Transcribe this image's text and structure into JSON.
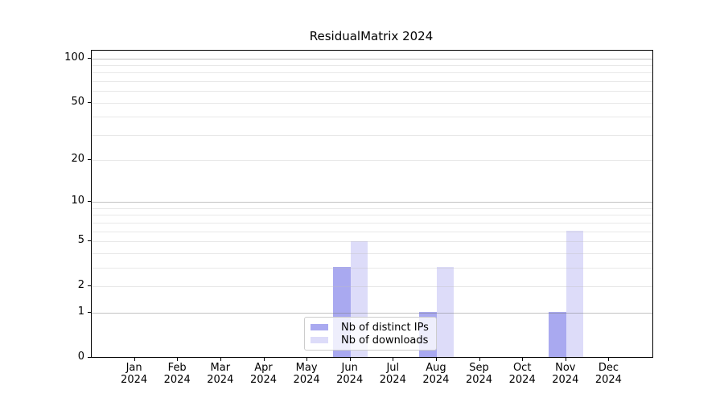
{
  "chart_data": {
    "type": "bar",
    "title": "ResidualMatrix 2024",
    "x_tick_month_labels": [
      "Jan",
      "Feb",
      "Mar",
      "Apr",
      "May",
      "Jun",
      "Jul",
      "Aug",
      "Sep",
      "Oct",
      "Nov",
      "Dec"
    ],
    "x_tick_year_label": "2024",
    "categories": [
      "Jan 2024",
      "Feb 2024",
      "Mar 2024",
      "Apr 2024",
      "May 2024",
      "Jun 2024",
      "Jul 2024",
      "Aug 2024",
      "Sep 2024",
      "Oct 2024",
      "Nov 2024",
      "Dec 2024"
    ],
    "series": [
      {
        "name": "Nb of distinct IPs",
        "color": "#a9a9f0",
        "values": [
          0,
          0,
          0,
          0,
          0,
          3,
          0,
          1,
          0,
          0,
          1,
          0
        ]
      },
      {
        "name": "Nb of downloads",
        "color": "#dddcf9",
        "values": [
          0,
          0,
          0,
          0,
          0,
          5,
          0,
          3,
          0,
          0,
          6,
          0
        ]
      }
    ],
    "xlabel": "",
    "ylabel": "",
    "scale": "log10(1+x)",
    "ylim": [
      0,
      112
    ],
    "y_tick_values": [
      0,
      1,
      2,
      5,
      10,
      20,
      50,
      100
    ],
    "y_major_gridlines": [
      1,
      10,
      100
    ],
    "y_minor_gridlines": [
      2,
      3,
      4,
      5,
      6,
      7,
      8,
      9,
      20,
      30,
      40,
      50,
      60,
      70,
      80,
      90
    ],
    "grid": true,
    "legend_position": "lower center",
    "colors": {
      "grid_major": "#c7c7c7",
      "grid_minor": "#ededed",
      "axis": "#000000",
      "text": "#000000",
      "legend_border": "#cccccc",
      "legend_background": "rgba(255,255,255,0.8)"
    }
  }
}
